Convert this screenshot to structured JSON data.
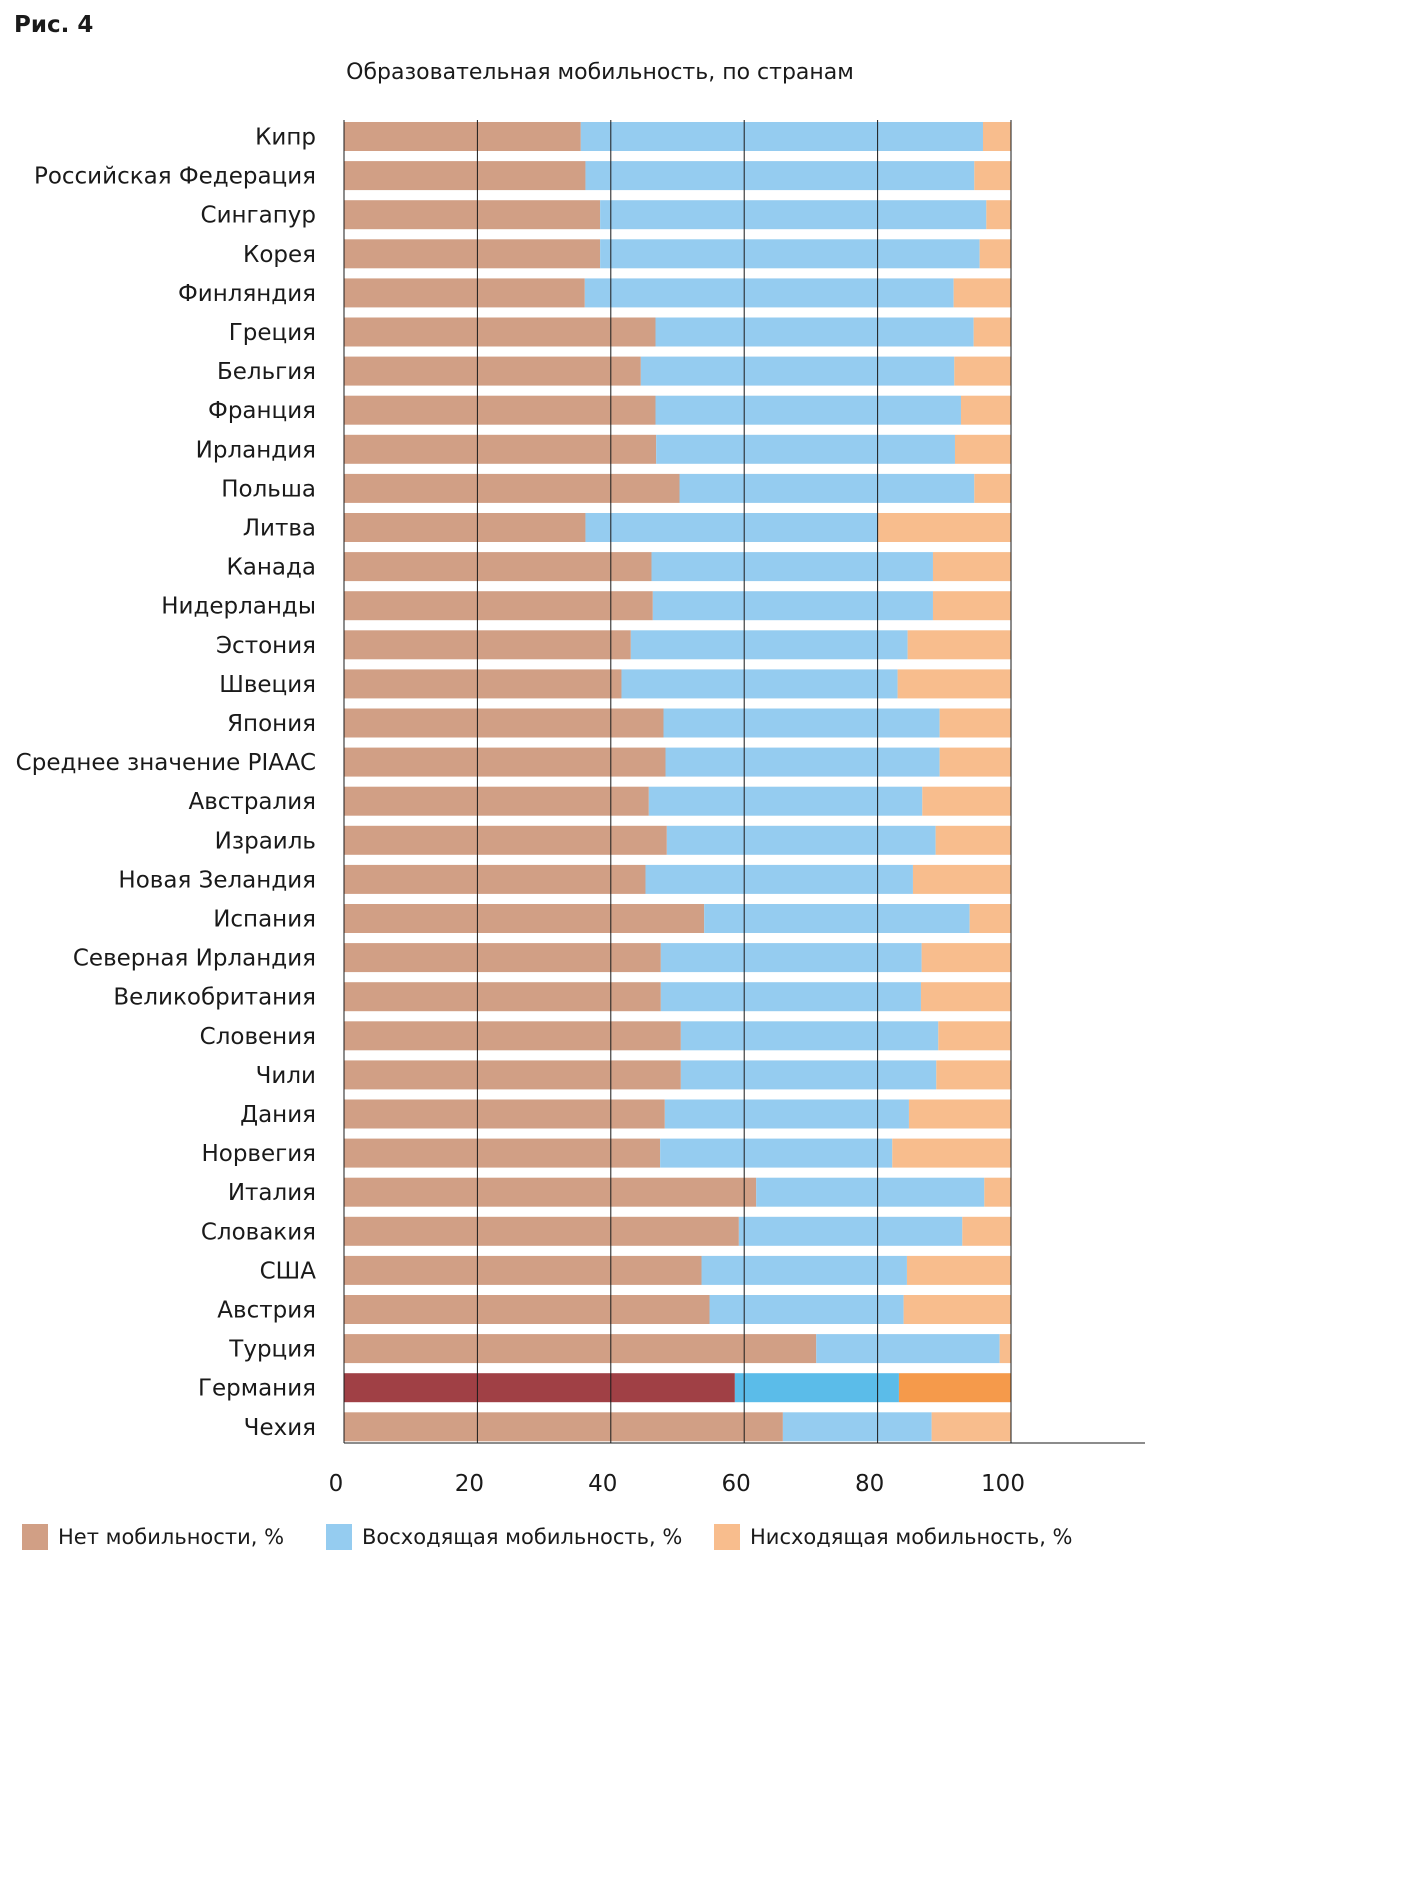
{
  "figure_label": "Рис. 4",
  "chart_data": {
    "type": "bar",
    "orientation": "horizontal",
    "stacked": true,
    "title": "Образовательная мобильность, по странам",
    "xlim": [
      0,
      120
    ],
    "xticks": [
      0,
      20,
      40,
      60,
      80,
      100
    ],
    "grid": true,
    "legend_position": "bottom",
    "categories": [
      "Кипр",
      "Российская Федерация",
      "Сингапур",
      "Корея",
      "Финляндия",
      "Греция",
      "Бельгия",
      "Франция",
      "Ирландия",
      "Польша",
      "Литва",
      "Канада",
      "Нидерланды",
      "Эстония",
      "Швеция",
      "Япония",
      "Среднее значение PIAAC",
      "Австралия",
      "Израиль",
      "Новая Зеландия",
      "Испания",
      "Северная Ирландия",
      "Великобритания",
      "Словения",
      "Чили",
      "Дания",
      "Норвегия",
      "Италия",
      "Словакия",
      "США",
      "Австрия",
      "Турция",
      "Германия",
      "Чехия"
    ],
    "series": [
      {
        "name": "Нет мобильности, %",
        "color": "#d19f85",
        "values": [
          35.5,
          36.2,
          38.4,
          38.4,
          36.1,
          46.7,
          44.5,
          46.7,
          46.8,
          50.3,
          36.2,
          46.1,
          46.3,
          43.0,
          41.6,
          47.9,
          48.2,
          45.7,
          48.4,
          45.2,
          54.0,
          47.5,
          47.5,
          50.5,
          50.5,
          48.1,
          47.4,
          61.8,
          59.2,
          53.6,
          54.8,
          70.8,
          58.6,
          65.8
        ]
      },
      {
        "name": "Восходящая мобильность, %",
        "color": "#95ccf0",
        "values": [
          60.3,
          58.3,
          57.9,
          56.9,
          55.3,
          47.7,
          47.0,
          45.8,
          44.8,
          44.2,
          43.8,
          42.2,
          42.0,
          41.5,
          41.4,
          41.4,
          41.1,
          41.0,
          40.3,
          40.1,
          39.8,
          39.1,
          39.0,
          38.6,
          38.3,
          36.6,
          34.8,
          34.2,
          33.5,
          30.8,
          29.1,
          27.5,
          24.6,
          22.3
        ]
      },
      {
        "name": "Нисходящая мобильность, %",
        "color": "#f8bd8d",
        "values": [
          4.2,
          5.5,
          3.7,
          4.7,
          8.6,
          5.6,
          8.5,
          7.5,
          8.4,
          5.5,
          20.0,
          11.7,
          11.7,
          15.5,
          17.0,
          10.7,
          10.7,
          13.3,
          11.3,
          14.7,
          6.2,
          13.4,
          13.5,
          10.9,
          11.2,
          15.3,
          17.8,
          4.0,
          7.3,
          15.6,
          16.1,
          1.7,
          16.8,
          11.9
        ]
      }
    ],
    "highlight": {
      "category": "Германия",
      "colors": [
        "#a04045",
        "#5bbce9",
        "#f59a4b"
      ]
    }
  }
}
